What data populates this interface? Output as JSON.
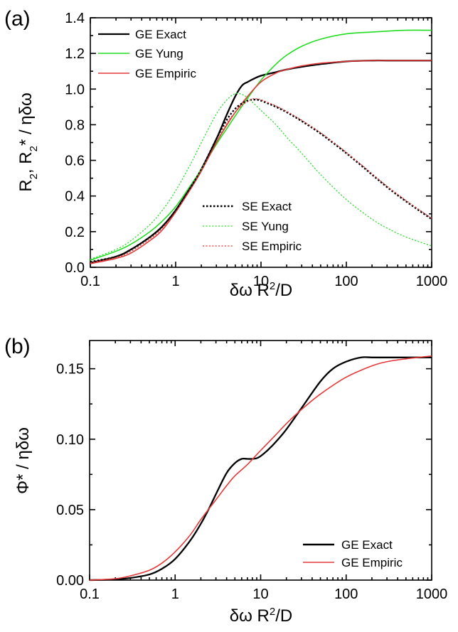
{
  "chart_data": [
    {
      "panel_label": "(a)",
      "type": "line",
      "x_scale": "log",
      "xlim": [
        0.1,
        1000
      ],
      "ylim": [
        0.0,
        1.4
      ],
      "xticks": [
        0.1,
        1,
        10,
        100,
        1000
      ],
      "xtick_labels": [
        "0.1",
        "1",
        "10",
        "100",
        "1000"
      ],
      "yticks": [
        0,
        0.2,
        0.4,
        0.6,
        0.8,
        1.0,
        1.2,
        1.4
      ],
      "ytick_labels": [
        "0.0",
        "0.2",
        "0.4",
        "0.6",
        "0.8",
        "1.0",
        "1.2",
        "1.4"
      ],
      "xlabel": {
        "base": "δω R",
        "sup": "2",
        "tail": "/D"
      },
      "ylabel": {
        "a": "R",
        "a_sub": "2",
        "b": ", R",
        "b_sub": "2",
        "c": "* / ηδω"
      },
      "legend_top": [
        "GE Exact",
        "GE Yung",
        "GE Empiric"
      ],
      "legend_bottom": [
        "SE Exact",
        "SE Yung",
        "SE Empiric"
      ],
      "series": [
        {
          "name": "GE Exact",
          "color": "#000000",
          "dash": "solid",
          "x": [
            0.1,
            0.2,
            0.3,
            0.5,
            0.7,
            1,
            1.5,
            2,
            3,
            4,
            5,
            6,
            7,
            8,
            10,
            15,
            20,
            30,
            50,
            100,
            200,
            300,
            500,
            1000
          ],
          "y": [
            0.025,
            0.06,
            0.1,
            0.17,
            0.23,
            0.32,
            0.45,
            0.55,
            0.72,
            0.86,
            0.96,
            1.02,
            1.04,
            1.055,
            1.075,
            1.095,
            1.11,
            1.125,
            1.14,
            1.155,
            1.16,
            1.16,
            1.16,
            1.16
          ]
        },
        {
          "name": "GE Yung",
          "color": "#22dd22",
          "dash": "solid",
          "x": [
            0.1,
            0.2,
            0.3,
            0.5,
            0.7,
            1,
            1.5,
            2,
            3,
            4,
            5,
            7,
            10,
            15,
            20,
            30,
            50,
            100,
            200,
            300,
            500,
            1000
          ],
          "y": [
            0.04,
            0.09,
            0.13,
            0.2,
            0.26,
            0.34,
            0.46,
            0.55,
            0.69,
            0.78,
            0.85,
            0.95,
            1.05,
            1.14,
            1.19,
            1.24,
            1.28,
            1.31,
            1.32,
            1.325,
            1.33,
            1.33
          ]
        },
        {
          "name": "GE Empiric",
          "color": "#e23a3a",
          "dash": "solid",
          "x": [
            0.1,
            0.2,
            0.3,
            0.5,
            0.7,
            1,
            1.5,
            2,
            3,
            4,
            5,
            7,
            10,
            15,
            20,
            30,
            50,
            100,
            200,
            300,
            500,
            1000
          ],
          "y": [
            0.02,
            0.05,
            0.08,
            0.15,
            0.21,
            0.31,
            0.44,
            0.54,
            0.7,
            0.8,
            0.87,
            0.96,
            1.04,
            1.09,
            1.11,
            1.13,
            1.145,
            1.155,
            1.16,
            1.16,
            1.16,
            1.16
          ]
        },
        {
          "name": "SE Exact",
          "color": "#000000",
          "dash": "dotted-thick",
          "x": [
            0.1,
            0.2,
            0.3,
            0.5,
            0.7,
            1,
            1.5,
            2,
            3,
            4,
            5,
            6,
            7,
            8,
            9,
            10,
            12,
            15,
            20,
            30,
            50,
            100,
            200,
            300,
            500,
            1000
          ],
          "y": [
            0.03,
            0.06,
            0.1,
            0.17,
            0.23,
            0.32,
            0.45,
            0.55,
            0.72,
            0.83,
            0.89,
            0.92,
            0.935,
            0.94,
            0.94,
            0.935,
            0.92,
            0.9,
            0.87,
            0.82,
            0.75,
            0.64,
            0.52,
            0.45,
            0.37,
            0.27
          ]
        },
        {
          "name": "SE Yung",
          "color": "#33dd33",
          "dash": "dotted",
          "x": [
            0.1,
            0.2,
            0.3,
            0.5,
            0.7,
            1,
            1.5,
            2,
            3,
            4,
            5,
            6,
            7,
            10,
            15,
            20,
            30,
            50,
            100,
            200,
            300,
            500,
            1000
          ],
          "y": [
            0.045,
            0.1,
            0.15,
            0.24,
            0.32,
            0.43,
            0.58,
            0.7,
            0.86,
            0.94,
            0.975,
            0.97,
            0.95,
            0.88,
            0.8,
            0.73,
            0.64,
            0.52,
            0.38,
            0.27,
            0.22,
            0.17,
            0.12
          ]
        },
        {
          "name": "SE Empiric",
          "color": "#e23a3a",
          "dash": "dotted",
          "x": [
            0.1,
            0.2,
            0.3,
            0.5,
            0.7,
            1,
            1.5,
            2,
            3,
            4,
            5,
            6,
            7,
            8,
            9,
            10,
            12,
            15,
            20,
            30,
            50,
            100,
            200,
            300,
            500,
            1000
          ],
          "y": [
            0.025,
            0.055,
            0.09,
            0.16,
            0.22,
            0.31,
            0.44,
            0.54,
            0.7,
            0.81,
            0.87,
            0.91,
            0.93,
            0.945,
            0.945,
            0.94,
            0.925,
            0.905,
            0.875,
            0.825,
            0.755,
            0.645,
            0.525,
            0.455,
            0.375,
            0.275
          ]
        }
      ]
    },
    {
      "panel_label": "(b)",
      "type": "line",
      "x_scale": "log",
      "xlim": [
        0.1,
        1000
      ],
      "ylim": [
        0.0,
        0.17
      ],
      "xticks": [
        0.1,
        1,
        10,
        100,
        1000
      ],
      "xtick_labels": [
        "0.1",
        "1",
        "10",
        "100",
        "1000"
      ],
      "yticks": [
        0,
        0.05,
        0.1,
        0.15
      ],
      "ytick_labels": [
        "0.00",
        "0.05",
        "0.10",
        "0.15"
      ],
      "xlabel": {
        "base": "δω R",
        "sup": "2",
        "tail": "/D"
      },
      "ylabel": {
        "text": "Φ* / ηδω"
      },
      "legend": [
        "GE Exact",
        "GE Empiric"
      ],
      "series": [
        {
          "name": "GE Exact",
          "color": "#000000",
          "dash": "solid",
          "x": [
            0.1,
            0.2,
            0.3,
            0.5,
            0.7,
            1,
            1.5,
            2,
            2.5,
            3,
            4,
            5,
            6,
            7,
            8,
            9,
            10,
            12,
            15,
            20,
            30,
            50,
            70,
            100,
            150,
            200,
            300,
            500,
            1000
          ],
          "y": [
            0.0,
            0.0005,
            0.0015,
            0.004,
            0.008,
            0.015,
            0.028,
            0.04,
            0.051,
            0.061,
            0.076,
            0.083,
            0.086,
            0.086,
            0.086,
            0.0865,
            0.088,
            0.092,
            0.098,
            0.107,
            0.122,
            0.141,
            0.15,
            0.155,
            0.158,
            0.158,
            0.158,
            0.158,
            0.158
          ]
        },
        {
          "name": "GE Empiric",
          "color": "#e23a3a",
          "dash": "solid",
          "x": [
            0.1,
            0.2,
            0.3,
            0.5,
            0.7,
            1,
            1.5,
            2,
            3,
            4,
            5,
            7,
            10,
            15,
            20,
            30,
            50,
            100,
            200,
            300,
            500,
            1000
          ],
          "y": [
            0.0,
            0.001,
            0.003,
            0.007,
            0.012,
            0.02,
            0.032,
            0.043,
            0.057,
            0.067,
            0.074,
            0.082,
            0.092,
            0.103,
            0.111,
            0.121,
            0.132,
            0.144,
            0.152,
            0.155,
            0.157,
            0.159
          ]
        }
      ]
    }
  ]
}
